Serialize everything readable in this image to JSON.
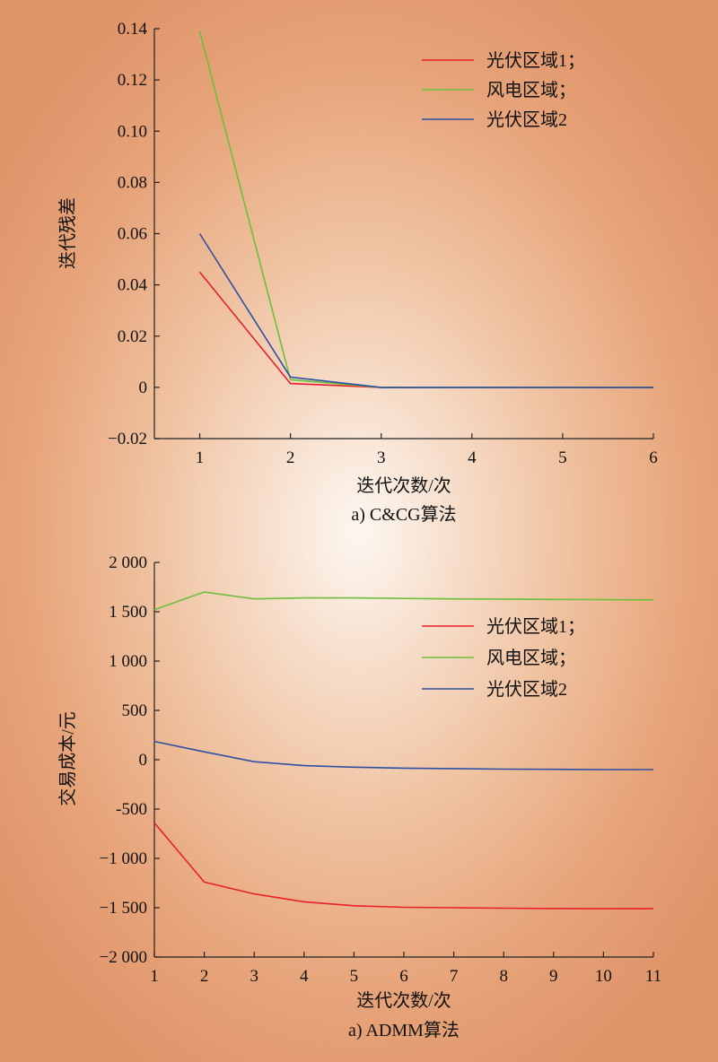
{
  "chart_data": [
    {
      "type": "line",
      "caption": "a) C&CG算法",
      "xlabel": "迭代次数/次",
      "ylabel": "迭代残差",
      "xlim": [
        0.5,
        6
      ],
      "ylim": [
        -0.02,
        0.14
      ],
      "xticks": [
        "1",
        "2",
        "3",
        "4",
        "5",
        "6"
      ],
      "yticks": [
        "−0.02",
        "0",
        "0.02",
        "0.04",
        "0.06",
        "0.08",
        "0.10",
        "0.12",
        "0.14"
      ],
      "legend_position": "top-right",
      "x": [
        1,
        2,
        3,
        4,
        5,
        6
      ],
      "series": [
        {
          "name": "光伏区域1；",
          "color": "#e8202a",
          "values": [
            0.045,
            0.0015,
            0.0,
            0.0,
            0.0,
            0.0
          ]
        },
        {
          "name": "风电区域；",
          "color": "#6cbf3a",
          "values": [
            0.139,
            0.003,
            0.0,
            0.0,
            0.0,
            0.0
          ]
        },
        {
          "name": "光伏区域2",
          "color": "#2e4fa3",
          "values": [
            0.06,
            0.004,
            0.0,
            0.0,
            0.0,
            0.0
          ]
        }
      ]
    },
    {
      "type": "line",
      "caption": "a) ADMM算法",
      "xlabel": "迭代次数/次",
      "ylabel": "交易成本/元",
      "xlim": [
        1,
        11
      ],
      "ylim": [
        -2000,
        2000
      ],
      "xticks": [
        "1",
        "2",
        "3",
        "4",
        "5",
        "6",
        "7",
        "8",
        "9",
        "10",
        "11"
      ],
      "yticks": [
        "−2 000",
        "−1 500",
        "−1 000",
        "-500",
        "0",
        "500",
        "1 000",
        "1 500",
        "2 000"
      ],
      "legend_position": "middle-right",
      "x": [
        1,
        2,
        3,
        4,
        5,
        6,
        7,
        8,
        9,
        10,
        11
      ],
      "series": [
        {
          "name": "光伏区域1；",
          "color": "#e8202a",
          "values": [
            -640,
            -1240,
            -1360,
            -1440,
            -1480,
            -1495,
            -1500,
            -1505,
            -1508,
            -1510,
            -1510
          ]
        },
        {
          "name": "风电区域；",
          "color": "#6cbf3a",
          "values": [
            1520,
            1700,
            1630,
            1640,
            1640,
            1635,
            1630,
            1628,
            1625,
            1623,
            1620
          ]
        },
        {
          "name": "光伏区域2",
          "color": "#2e4fa3",
          "values": [
            185,
            80,
            -20,
            -60,
            -75,
            -85,
            -90,
            -95,
            -97,
            -100,
            -100
          ]
        }
      ]
    }
  ]
}
